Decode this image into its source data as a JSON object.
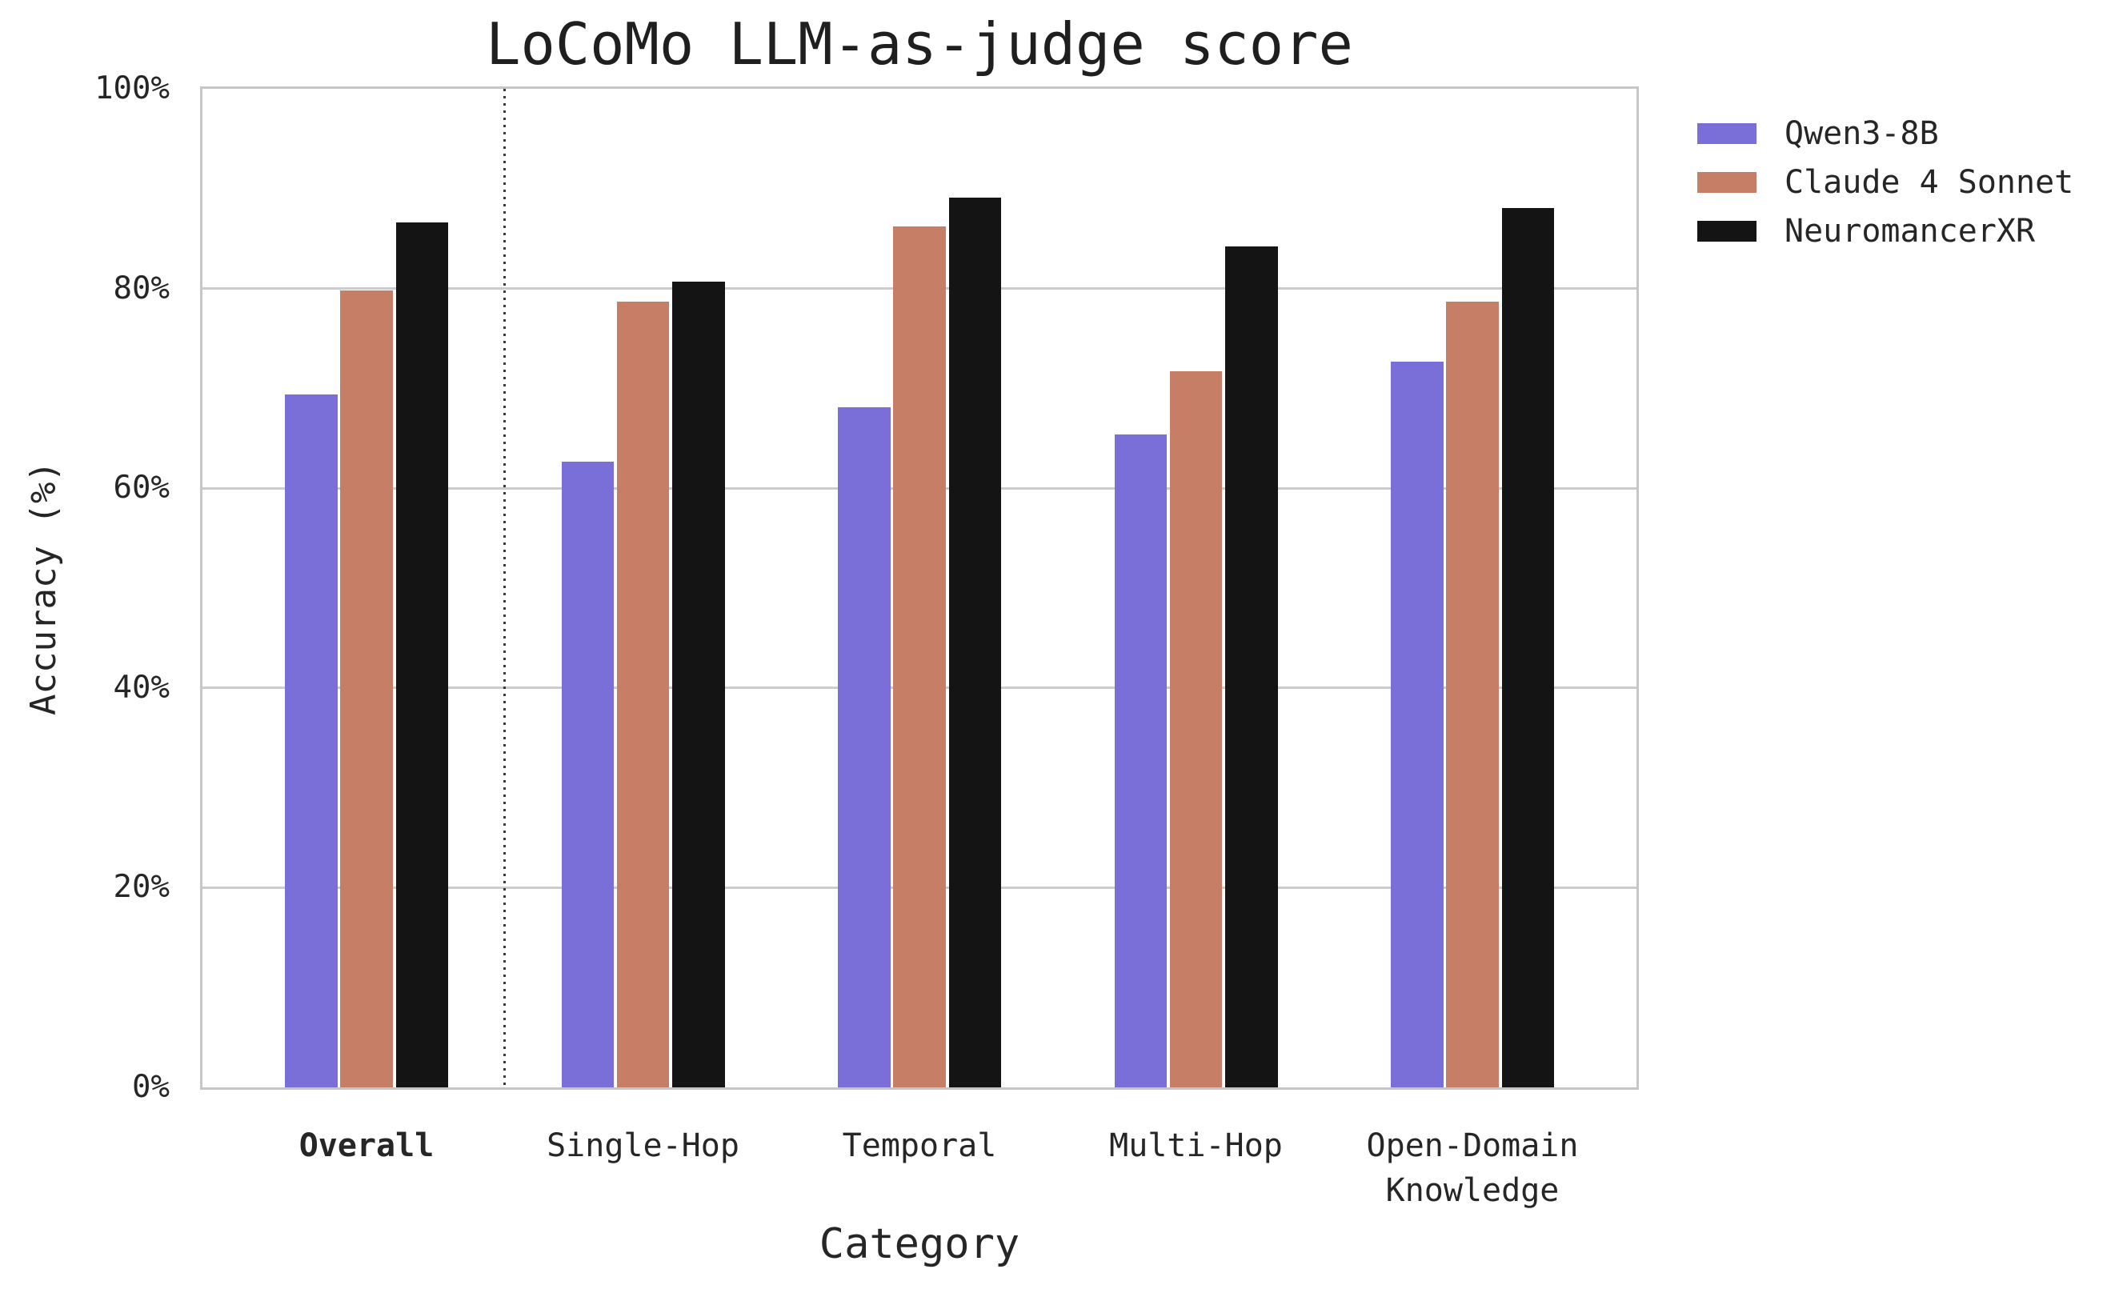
{
  "chart_data": {
    "type": "bar",
    "title": "LoCoMo LLM-as-judge score",
    "xlabel": "Category",
    "ylabel": "Accuracy (%)",
    "categories": [
      "Overall",
      "Single-Hop",
      "Temporal",
      "Multi-Hop",
      "Open-Domain\nKnowledge"
    ],
    "bold_category_index": 0,
    "separator_after_category_index": 0,
    "series": [
      {
        "name": "Qwen3-8B",
        "color": "#7a6ed8",
        "values": [
          69.4,
          62.7,
          68.1,
          65.4,
          72.7
        ]
      },
      {
        "name": "Claude 4 Sonnet",
        "color": "#c67f66",
        "values": [
          79.8,
          78.7,
          86.2,
          71.7,
          78.7
        ]
      },
      {
        "name": "NeuromancerXR",
        "color": "#141414",
        "values": [
          86.6,
          80.7,
          89.1,
          84.2,
          88.1
        ]
      }
    ],
    "y_ticks": [
      {
        "label": "0%",
        "value": 0
      },
      {
        "label": "20%",
        "value": 20
      },
      {
        "label": "40%",
        "value": 40
      },
      {
        "label": "60%",
        "value": 60
      },
      {
        "label": "80%",
        "value": 80
      },
      {
        "label": "100%",
        "value": 100
      }
    ],
    "ylim": [
      0,
      100
    ],
    "grid": "horizontal",
    "legend_position": "outside-top-right"
  },
  "colors": {
    "grid": "#cccccc",
    "spine": "#c6c6c6",
    "separator": "#3a3a3a",
    "text": "#262626",
    "background": "#ffffff"
  }
}
